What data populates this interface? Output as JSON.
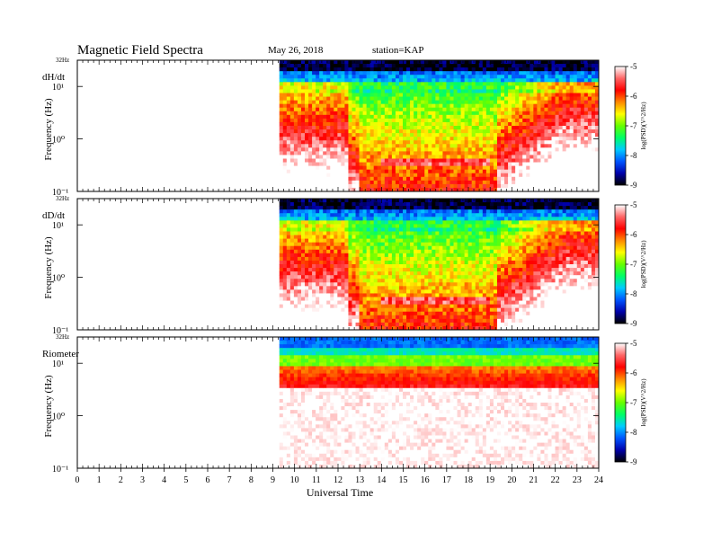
{
  "header": {
    "title": "Magnetic  Field  Spectra",
    "date": "May 26, 2018",
    "station": "station=KAP"
  },
  "chart_data": {
    "type": "heatmap",
    "title": "Magnetic  Field  Spectra",
    "xlabel": "Universal  Time",
    "x_ticks": [
      "0",
      "1",
      "2",
      "3",
      "4",
      "5",
      "6",
      "7",
      "8",
      "9",
      "10",
      "11",
      "12",
      "13",
      "14",
      "15",
      "16",
      "17",
      "18",
      "19",
      "20",
      "21",
      "22",
      "23",
      "24"
    ],
    "xlim": [
      0,
      24
    ],
    "data_start_hour": 9.3,
    "colorbar": {
      "label": "log(PSD)(V^2/Hz)",
      "ticks": [
        "-5",
        "-6",
        "-7",
        "-8",
        "-9"
      ],
      "range": [
        -9,
        -5
      ],
      "colors": [
        "#000000",
        "#0000aa",
        "#0055ff",
        "#00ccff",
        "#00ff66",
        "#66ff00",
        "#ffff00",
        "#ff8800",
        "#ff0000",
        "#ff6666",
        "#ffffff"
      ]
    },
    "panels": [
      {
        "name": "dH/dt",
        "ylabel": "Frequency  (Hz)",
        "top_label": "32Hz",
        "y_ticks": [
          "10¹",
          "10⁰",
          "10⁻¹"
        ],
        "ylim_log10": [
          -1,
          1.5
        ]
      },
      {
        "name": "dD/dt",
        "ylabel": "Frequency  (Hz)",
        "top_label": "32Hz",
        "y_ticks": [
          "10¹",
          "10⁰",
          "10⁻¹"
        ],
        "ylim_log10": [
          -1,
          1.5
        ]
      },
      {
        "name": "Riometer",
        "ylabel": "Frequency  (Hz)",
        "top_label": "32Hz",
        "y_ticks": [
          "10¹",
          "10⁰",
          "10⁻¹"
        ],
        "ylim_log10": [
          -1,
          1.5
        ]
      }
    ]
  }
}
